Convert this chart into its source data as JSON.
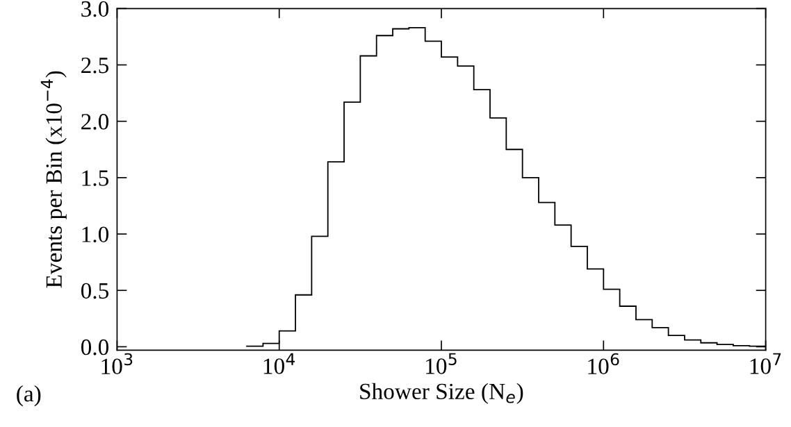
{
  "chart_data": {
    "type": "histogram",
    "xlabel": "Shower Size (N$_{e}$)",
    "ylabel": "Events per Bin (x10$^{−4}$)",
    "annotations": [
      "(a)"
    ],
    "bins": [
      6309.6,
      7943.3,
      10000,
      12589,
      15849,
      19953,
      25119,
      31623,
      39811,
      50119,
      63096,
      79433,
      100000,
      125893,
      158489,
      199526,
      251189,
      316228,
      398107,
      501187,
      630957,
      794328,
      1000000,
      1258925,
      1584893,
      1995262,
      2511886,
      3162278,
      3981072,
      5011872,
      6309573,
      7943282,
      10000000
    ],
    "values": [
      0.005,
      0.03,
      0.14,
      0.46,
      0.98,
      1.64,
      2.17,
      2.58,
      2.76,
      2.82,
      2.83,
      2.71,
      2.57,
      2.49,
      2.28,
      2.03,
      1.75,
      1.5,
      1.28,
      1.08,
      0.89,
      0.69,
      0.51,
      0.36,
      0.24,
      0.17,
      0.1,
      0.06,
      0.035,
      0.02,
      0.01,
      0.005
    ],
    "color": "#000000",
    "log": "x",
    "grid": false,
    "xlim": [
      1000,
      10000000
    ],
    "xticks": [
      {
        "value": 1000,
        "label": "10$^{3}$"
      },
      {
        "value": 10000,
        "label": "10$^{4}$"
      },
      {
        "value": 100000,
        "label": "10$^{5}$"
      },
      {
        "value": 1000000,
        "label": "10$^{6}$"
      },
      {
        "value": 10000000,
        "label": "10$^{7}$"
      }
    ],
    "ylim": [
      -0.03,
      3.0
    ],
    "yticks": [
      {
        "value": 0,
        "label": "0.0"
      },
      {
        "value": 0.5,
        "label": "0.5"
      },
      {
        "value": 1,
        "label": "1.0"
      },
      {
        "value": 1.5,
        "label": "1.5"
      },
      {
        "value": 2,
        "label": "2.0"
      },
      {
        "value": 2.5,
        "label": "2.5"
      },
      {
        "value": 3,
        "label": "3.0"
      }
    ]
  }
}
